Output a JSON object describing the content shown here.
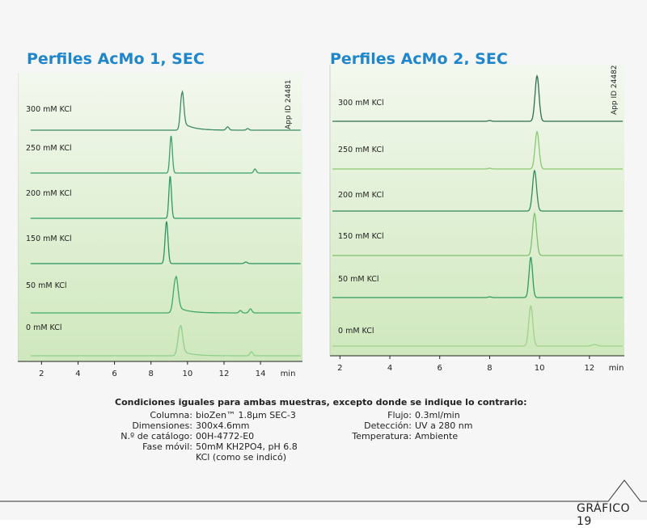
{
  "panels": [
    {
      "title": "Perfiles AcMo 1, SEC",
      "app_id": "App ID 24481",
      "x_unit": "min",
      "chart_data": {
        "type": "line",
        "title": "Perfiles AcMo 1, SEC",
        "xlabel": "min",
        "xlim": [
          0.7,
          16.3
        ],
        "xticks": [
          2,
          4,
          6,
          8,
          10,
          12,
          14
        ],
        "grid": false,
        "series": [
          {
            "name": "300 mM KCl",
            "color": "#3d8a63",
            "peaks": [
              {
                "x": 9.7,
                "h": 46,
                "w": 0.09,
                "tail": 10
              },
              {
                "x": 12.2,
                "h": 4,
                "w": 0.08
              },
              {
                "x": 13.3,
                "h": 2,
                "w": 0.07
              }
            ]
          },
          {
            "name": "250 mM KCl",
            "color": "#3ea06a",
            "peaks": [
              {
                "x": 9.1,
                "h": 46,
                "w": 0.07
              },
              {
                "x": 13.7,
                "h": 5,
                "w": 0.07
              }
            ]
          },
          {
            "name": "200 mM KCl",
            "color": "#2e9a62",
            "peaks": [
              {
                "x": 9.05,
                "h": 52,
                "w": 0.07
              }
            ]
          },
          {
            "name": "150 mM KCl",
            "color": "#2a9460",
            "peaks": [
              {
                "x": 8.85,
                "h": 52,
                "w": 0.08
              },
              {
                "x": 13.2,
                "h": 2,
                "w": 0.08
              }
            ]
          },
          {
            "name": "50 mM KCl",
            "color": "#3da86a",
            "peaks": [
              {
                "x": 9.35,
                "h": 43,
                "w": 0.12,
                "tail": 9
              },
              {
                "x": 12.9,
                "h": 3,
                "w": 0.07
              },
              {
                "x": 13.45,
                "h": 5,
                "w": 0.08
              }
            ]
          },
          {
            "name": "0 mM KCl",
            "color": "#8fcf8d",
            "peaks": [
              {
                "x": 9.6,
                "h": 36,
                "w": 0.12,
                "tail": 7
              },
              {
                "x": 13.5,
                "h": 5,
                "w": 0.08
              }
            ]
          }
        ]
      }
    },
    {
      "title": "Perfiles AcMo 2, SEC",
      "app_id": "App ID 24482",
      "x_unit": "min",
      "chart_data": {
        "type": "line",
        "title": "Perfiles AcMo 2, SEC",
        "xlabel": "min",
        "xlim": [
          1.6,
          13.4
        ],
        "xticks": [
          2,
          4,
          6,
          8,
          10,
          12
        ],
        "grid": false,
        "series": [
          {
            "name": "300 mM KCl",
            "color": "#2f6f4f",
            "peaks": [
              {
                "x": 9.9,
                "h": 56,
                "w": 0.08
              },
              {
                "x": 8.0,
                "h": 1,
                "w": 0.06
              }
            ]
          },
          {
            "name": "250 mM KCl",
            "color": "#8ac870",
            "peaks": [
              {
                "x": 9.9,
                "h": 46,
                "w": 0.08
              },
              {
                "x": 8.0,
                "h": 1,
                "w": 0.06
              }
            ]
          },
          {
            "name": "200 mM KCl",
            "color": "#2f8a5a",
            "peaks": [
              {
                "x": 9.8,
                "h": 50,
                "w": 0.08
              }
            ]
          },
          {
            "name": "150 mM KCl",
            "color": "#7fc070",
            "peaks": [
              {
                "x": 9.8,
                "h": 52,
                "w": 0.08
              }
            ]
          },
          {
            "name": "50 mM KCl",
            "color": "#2f9a62",
            "peaks": [
              {
                "x": 9.65,
                "h": 50,
                "w": 0.07
              },
              {
                "x": 8.0,
                "h": 1,
                "w": 0.06
              }
            ]
          },
          {
            "name": "0 mM KCl",
            "color": "#9fd28a",
            "peaks": [
              {
                "x": 9.65,
                "h": 50,
                "w": 0.08
              },
              {
                "x": 12.2,
                "h": 2,
                "w": 0.1
              }
            ]
          }
        ]
      }
    }
  ],
  "conditions": {
    "heading": "Condiciones iguales para ambas muestras, excepto donde se indique lo contrario:",
    "left": [
      {
        "label": "Columna:",
        "value": "bioZen™ 1.8µm SEC-3"
      },
      {
        "label": "Dimensiones:",
        "value": "300x4.6mm"
      },
      {
        "label": "N.º de catálogo:",
        "value": "00H-4772-E0"
      },
      {
        "label": "Fase móvil:",
        "value": "50mM KH2PO4, pH 6.8"
      },
      {
        "label": "",
        "value": "KCl (como se indicó)"
      }
    ],
    "right": [
      {
        "label": "Flujo:",
        "value": "0.3ml/min"
      },
      {
        "label": "Detección:",
        "value": "UV a 280 nm"
      },
      {
        "label": "Temperatura:",
        "value": "Ambiente"
      }
    ]
  },
  "figure_label": "GRÁFICO 19"
}
